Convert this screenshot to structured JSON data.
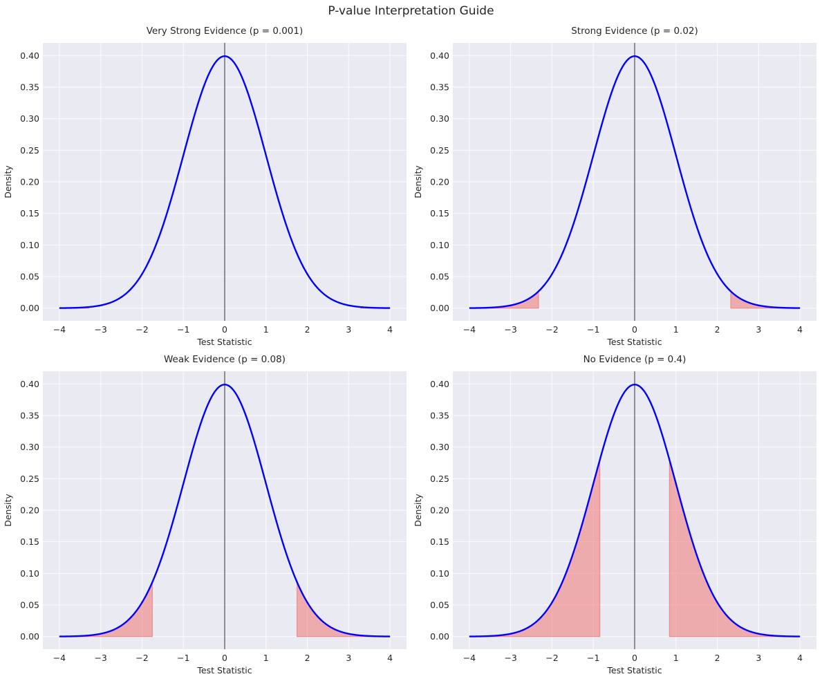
{
  "figure": {
    "title": "P-value Interpretation Guide"
  },
  "colors": {
    "axes_background": "#EAEAF2",
    "grid": "#FFFFFF",
    "curve": "#0000FF",
    "fill": "#F08080",
    "vline": "#000000",
    "text": "#262626"
  },
  "chart_data": [
    {
      "type": "area",
      "title": "Very Strong Evidence (p = 0.001)",
      "xlabel": "Test Statistic",
      "ylabel": "Density",
      "xlim": [
        -4.4,
        4.4
      ],
      "ylim": [
        -0.02,
        0.42
      ],
      "x_ticks": [
        "−4",
        "−3",
        "−2",
        "−1",
        "0",
        "1",
        "2",
        "3",
        "4"
      ],
      "y_ticks": [
        "0.00",
        "0.05",
        "0.10",
        "0.15",
        "0.20",
        "0.25",
        "0.30",
        "0.35",
        "0.40"
      ],
      "curve": "standard normal density, x from -4 to 4",
      "p_value": 0.001,
      "critical_value": 3.29,
      "shaded_tails": [
        "x <= -3.29",
        "x >= 3.29"
      ],
      "vline_x": 0
    },
    {
      "type": "area",
      "title": "Strong Evidence (p = 0.02)",
      "xlabel": "Test Statistic",
      "ylabel": "Density",
      "xlim": [
        -4.4,
        4.4
      ],
      "ylim": [
        -0.02,
        0.42
      ],
      "x_ticks": [
        "−4",
        "−3",
        "−2",
        "−1",
        "0",
        "1",
        "2",
        "3",
        "4"
      ],
      "y_ticks": [
        "0.00",
        "0.05",
        "0.10",
        "0.15",
        "0.20",
        "0.25",
        "0.30",
        "0.35",
        "0.40"
      ],
      "curve": "standard normal density, x from -4 to 4",
      "p_value": 0.02,
      "critical_value": 2.326,
      "shaded_tails": [
        "x <= -2.326",
        "x >= 2.326"
      ],
      "vline_x": 0
    },
    {
      "type": "area",
      "title": "Weak Evidence (p = 0.08)",
      "xlabel": "Test Statistic",
      "ylabel": "Density",
      "xlim": [
        -4.4,
        4.4
      ],
      "ylim": [
        -0.02,
        0.42
      ],
      "x_ticks": [
        "−4",
        "−3",
        "−2",
        "−1",
        "0",
        "1",
        "2",
        "3",
        "4"
      ],
      "y_ticks": [
        "0.00",
        "0.05",
        "0.10",
        "0.15",
        "0.20",
        "0.25",
        "0.30",
        "0.35",
        "0.40"
      ],
      "curve": "standard normal density, x from -4 to 4",
      "p_value": 0.08,
      "critical_value": 1.751,
      "shaded_tails": [
        "x <= -1.751",
        "x >= 1.751"
      ],
      "vline_x": 0
    },
    {
      "type": "area",
      "title": "No Evidence (p = 0.4)",
      "xlabel": "Test Statistic",
      "ylabel": "Density",
      "xlim": [
        -4.4,
        4.4
      ],
      "ylim": [
        -0.02,
        0.42
      ],
      "x_ticks": [
        "−4",
        "−3",
        "−2",
        "−1",
        "0",
        "1",
        "2",
        "3",
        "4"
      ],
      "y_ticks": [
        "0.00",
        "0.05",
        "0.10",
        "0.15",
        "0.20",
        "0.25",
        "0.30",
        "0.35",
        "0.40"
      ],
      "curve": "standard normal density, x from -4 to 4",
      "p_value": 0.4,
      "critical_value": 0.842,
      "shaded_tails": [
        "x <= -0.842",
        "x >= 0.842"
      ],
      "vline_x": 0
    }
  ]
}
